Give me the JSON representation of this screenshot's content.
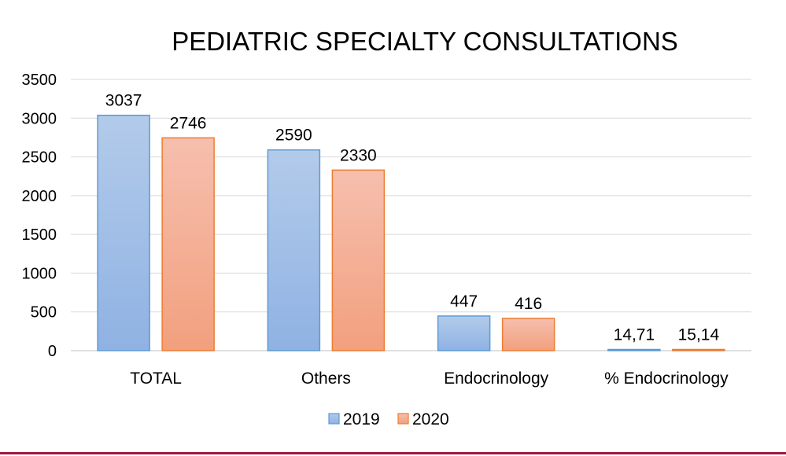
{
  "chart_data": {
    "type": "bar",
    "title": "PEDIATRIC SPECIALTY CONSULTATIONS",
    "categories": [
      "TOTAL",
      "Others",
      "Endocrinology",
      "% Endocrinology"
    ],
    "series": [
      {
        "name": "2019",
        "values": [
          3037,
          2590,
          447,
          14.71
        ],
        "labels": [
          "3037",
          "2590",
          "447",
          "14,71"
        ],
        "color": "#5b9bd5"
      },
      {
        "name": "2020",
        "values": [
          2746,
          2330,
          416,
          15.14
        ],
        "labels": [
          "2746",
          "2330",
          "416",
          "15,14"
        ],
        "color": "#ed7d31"
      }
    ],
    "ylim": [
      0,
      3500
    ],
    "yticks": [
      0,
      500,
      1000,
      1500,
      2000,
      2500,
      3000,
      3500
    ],
    "grid": true,
    "legend_position": "bottom"
  },
  "colors": {
    "bottom_rule": "#a0193e"
  }
}
